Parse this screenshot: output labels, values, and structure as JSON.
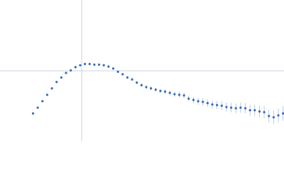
{
  "chart_data": {
    "type": "scatter",
    "x": [
      0.7,
      0.8,
      0.9,
      1.0,
      1.1,
      1.2,
      1.3,
      1.4,
      1.5,
      1.6,
      1.7,
      1.8,
      1.9,
      2.0,
      2.1,
      2.2,
      2.3,
      2.4,
      2.5,
      2.6,
      2.7,
      2.8,
      2.9,
      3.0,
      3.1,
      3.2,
      3.3,
      3.4,
      3.5,
      3.6,
      3.7,
      3.8,
      3.9,
      4.0,
      4.1,
      4.2,
      4.3,
      4.4,
      4.5,
      4.6,
      4.7,
      4.8,
      4.9,
      5.0,
      5.1,
      5.2,
      5.3,
      5.4,
      5.5,
      5.6,
      5.7,
      5.8,
      5.9,
      6.0
    ],
    "series": [
      {
        "color": "#3a6bb8",
        "error_color": "#a9bfe0",
        "values": [
          0.44,
          0.53,
          0.63,
          0.73,
          0.83,
          0.93,
          1.0,
          1.07,
          1.11,
          1.16,
          1.19,
          1.21,
          1.21,
          1.2,
          1.2,
          1.19,
          1.17,
          1.14,
          1.09,
          1.05,
          1.0,
          0.97,
          0.92,
          0.88,
          0.85,
          0.83,
          0.81,
          0.79,
          0.78,
          0.76,
          0.74,
          0.73,
          0.72,
          0.67,
          0.65,
          0.63,
          0.62,
          0.6,
          0.58,
          0.57,
          0.56,
          0.54,
          0.53,
          0.52,
          0.53,
          0.52,
          0.49,
          0.49,
          0.47,
          0.46,
          0.4,
          0.38,
          0.41,
          0.44
        ],
        "errors": [
          0.005,
          0.005,
          0.005,
          0.005,
          0.005,
          0.006,
          0.006,
          0.007,
          0.007,
          0.008,
          0.008,
          0.009,
          0.01,
          0.01,
          0.011,
          0.012,
          0.013,
          0.014,
          0.016,
          0.018,
          0.02,
          0.022,
          0.024,
          0.026,
          0.028,
          0.03,
          0.032,
          0.034,
          0.036,
          0.038,
          0.04,
          0.042,
          0.045,
          0.048,
          0.05,
          0.053,
          0.056,
          0.059,
          0.062,
          0.065,
          0.068,
          0.071,
          0.074,
          0.077,
          0.08,
          0.083,
          0.086,
          0.089,
          0.092,
          0.095,
          0.1,
          0.105,
          0.11,
          0.115
        ]
      }
    ],
    "xlim": [
      0,
      6.02
    ],
    "ylim": [
      0,
      2.207
    ],
    "reference_lines": {
      "x": 1.732,
      "y": 1.104,
      "color": "#c9d3e3"
    }
  }
}
